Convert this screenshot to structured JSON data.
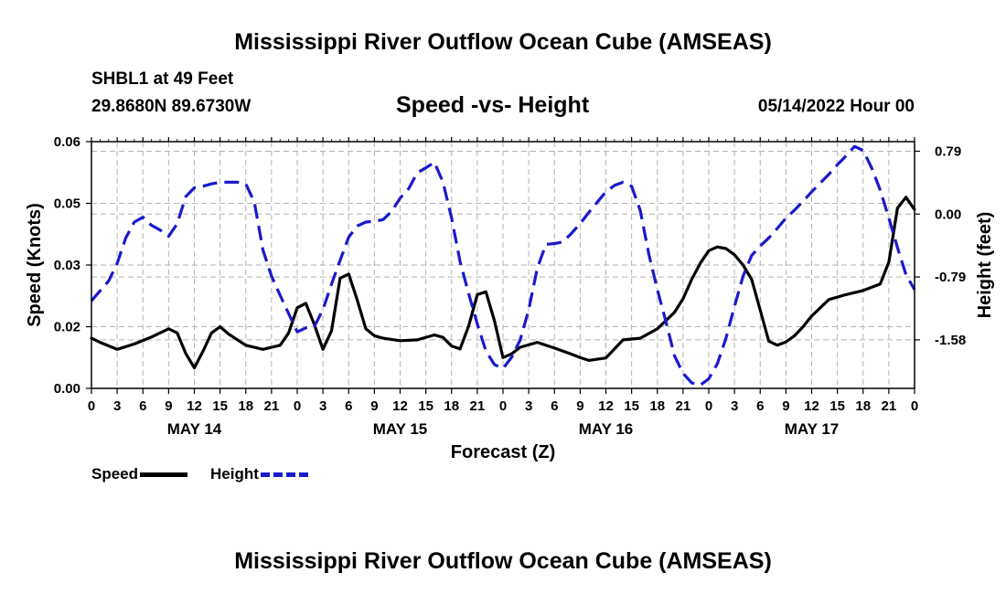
{
  "header": {
    "title": "Mississippi River Outflow Ocean Cube (AMSEAS)",
    "station": "SHBL1 at 49 Feet",
    "coords": "29.8680N  89.6730W",
    "subtitle": "Speed -vs- Height",
    "datetime": "05/14/2022 Hour 00"
  },
  "footer": {
    "title": "Mississippi River Outflow Ocean Cube (AMSEAS)"
  },
  "legend": {
    "speed_label": "Speed",
    "height_label": "Height"
  },
  "colors": {
    "speed": "#000000",
    "height": "#1a1acc",
    "grid": "#b3b3b3"
  },
  "chart_data": {
    "type": "line",
    "xlabel": "Forecast (Z)",
    "ylabel": "Speed (Knots)",
    "y2label": "Height (feet)",
    "xlim": [
      0,
      96
    ],
    "ylim": [
      0,
      0.06
    ],
    "y2lim": [
      -2.19,
      0.91
    ],
    "x_tick_labels": [
      "0",
      "3",
      "6",
      "9",
      "12",
      "15",
      "18",
      "21",
      "0",
      "3",
      "6",
      "9",
      "12",
      "15",
      "18",
      "21",
      "0",
      "3",
      "6",
      "9",
      "12",
      "15",
      "18",
      "21",
      "0",
      "3",
      "6",
      "9",
      "12",
      "15",
      "18",
      "21",
      "0"
    ],
    "day_labels": [
      "MAY 14",
      "MAY 15",
      "MAY 16",
      "MAY 17"
    ],
    "y_ticks": [
      0.0,
      0.015,
      0.03,
      0.045,
      0.06
    ],
    "y_tick_labels": [
      "0.00",
      "0.02",
      "0.03",
      "0.05",
      "0.06"
    ],
    "y2_ticks": [
      0.79,
      0.0,
      -0.79,
      -1.58
    ],
    "y2_tick_labels": [
      "0.79",
      "0.00",
      "-0.79",
      "-1.58"
    ],
    "grid": true,
    "series": [
      {
        "name": "Speed",
        "axis": "left",
        "x": [
          0,
          1,
          3,
          5,
          7,
          9,
          10,
          11,
          12,
          13,
          14,
          15,
          16,
          18,
          20,
          22,
          23,
          24,
          25,
          26,
          27,
          28,
          29,
          30,
          31,
          32,
          33,
          34,
          36,
          38,
          40,
          41,
          42,
          43,
          44,
          45,
          46,
          47,
          48,
          49,
          50,
          52,
          54,
          56,
          57,
          58,
          60,
          62,
          64,
          66,
          68,
          69,
          70,
          71,
          72,
          73,
          74,
          75,
          76,
          77,
          78,
          79,
          80,
          81,
          82,
          83,
          84,
          86,
          88,
          90,
          92,
          93,
          94,
          95,
          96
        ],
        "values": [
          0.0122,
          0.0112,
          0.0095,
          0.0108,
          0.0125,
          0.0145,
          0.0135,
          0.0085,
          0.005,
          0.009,
          0.0135,
          0.015,
          0.0132,
          0.0105,
          0.0095,
          0.0105,
          0.0135,
          0.0196,
          0.0207,
          0.0155,
          0.0095,
          0.014,
          0.0268,
          0.0278,
          0.0215,
          0.0145,
          0.0128,
          0.0122,
          0.0116,
          0.0118,
          0.013,
          0.0124,
          0.0103,
          0.0096,
          0.0152,
          0.0228,
          0.0235,
          0.0165,
          0.0075,
          0.0084,
          0.01,
          0.0112,
          0.0098,
          0.0083,
          0.0075,
          0.0068,
          0.0074,
          0.0118,
          0.0122,
          0.0145,
          0.0185,
          0.0218,
          0.0265,
          0.0304,
          0.0335,
          0.0344,
          0.034,
          0.0325,
          0.03,
          0.0265,
          0.019,
          0.0115,
          0.0105,
          0.0113,
          0.0128,
          0.015,
          0.0176,
          0.0216,
          0.0228,
          0.0238,
          0.0254,
          0.0307,
          0.0438,
          0.0465,
          0.0435
        ]
      },
      {
        "name": "Height",
        "axis": "right",
        "x": [
          0,
          2,
          3,
          4,
          5,
          6,
          7,
          8,
          9,
          10,
          11,
          12,
          13,
          14,
          15,
          16,
          17,
          18,
          19,
          20,
          21,
          22,
          23,
          24,
          25,
          26,
          27,
          28,
          29,
          30,
          31,
          32,
          33,
          34,
          35,
          36,
          37,
          38,
          39,
          40,
          41,
          42,
          43,
          44,
          45,
          46,
          47,
          48,
          49,
          50,
          51,
          52,
          53,
          54,
          55,
          56,
          57,
          58,
          59,
          60,
          61,
          62,
          63,
          64,
          65,
          66,
          67,
          68,
          69,
          70,
          71,
          72,
          73,
          74,
          75,
          76,
          77,
          78,
          79,
          80,
          81,
          82,
          83,
          84,
          85,
          86,
          87,
          88,
          89,
          90,
          91,
          92,
          93,
          94,
          95,
          96
        ],
        "values": [
          -1.09,
          -0.84,
          -0.62,
          -0.3,
          -0.1,
          -0.04,
          -0.14,
          -0.2,
          -0.28,
          -0.12,
          0.22,
          0.33,
          0.35,
          0.38,
          0.4,
          0.4,
          0.4,
          0.38,
          0.15,
          -0.45,
          -0.78,
          -1.02,
          -1.25,
          -1.48,
          -1.43,
          -1.41,
          -1.2,
          -0.88,
          -0.58,
          -0.29,
          -0.15,
          -0.1,
          -0.09,
          -0.07,
          0.03,
          0.2,
          0.32,
          0.52,
          0.58,
          0.65,
          0.4,
          -0.05,
          -0.6,
          -1.0,
          -1.38,
          -1.72,
          -1.89,
          -1.94,
          -1.8,
          -1.58,
          -1.2,
          -0.68,
          -0.38,
          -0.37,
          -0.35,
          -0.24,
          -0.12,
          0.02,
          0.15,
          0.28,
          0.36,
          0.4,
          0.35,
          0.05,
          -0.5,
          -0.95,
          -1.35,
          -1.78,
          -2.0,
          -2.12,
          -2.15,
          -2.07,
          -1.88,
          -1.56,
          -1.16,
          -0.78,
          -0.52,
          -0.4,
          -0.3,
          -0.18,
          -0.05,
          0.05,
          0.16,
          0.28,
          0.39,
          0.5,
          0.62,
          0.73,
          0.85,
          0.8,
          0.58,
          0.3,
          -0.05,
          -0.42,
          -0.76,
          -0.95
        ]
      }
    ]
  }
}
